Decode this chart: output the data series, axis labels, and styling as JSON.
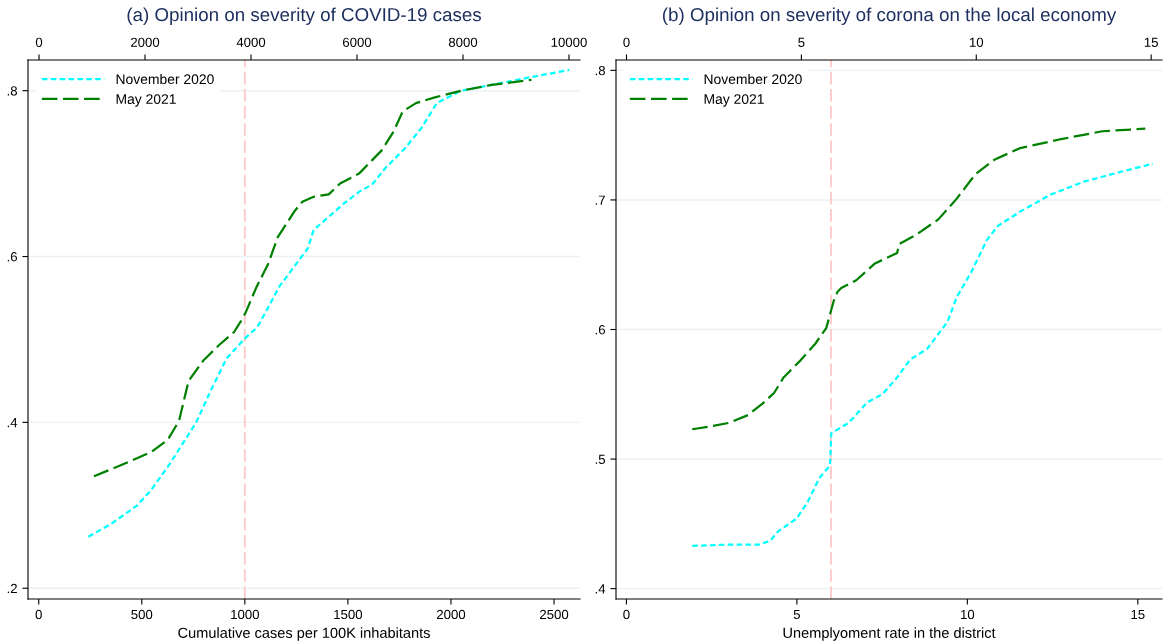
{
  "chart_data": [
    {
      "type": "line",
      "title": "(a) Opinion on severity of COVID-19 cases",
      "xlabel": "Cumulative cases per 100K inhabitants",
      "xlim": [
        -52,
        2626
      ],
      "xticks": [
        0,
        500,
        1000,
        1500,
        2000,
        2500
      ],
      "x2lim": [
        -208,
        10208
      ],
      "x2ticks": [
        0,
        2000,
        4000,
        6000,
        8000,
        10000
      ],
      "ylim": [
        0.187,
        0.837
      ],
      "yticks": [
        {
          "value": 0.2,
          "label": ".2"
        },
        {
          "value": 0.4,
          "label": ".4"
        },
        {
          "value": 0.6,
          "label": ".6"
        },
        {
          "value": 0.8,
          "label": ".8"
        }
      ],
      "grid": "y",
      "legend": "top left",
      "marker": "none",
      "ref_lines": [
        {
          "axis": "x",
          "value": 1000,
          "color": "#ffc8c8",
          "line_style": "dashed"
        }
      ],
      "series": [
        {
          "name": "November 2020",
          "color": "#00ffff",
          "line_style": "dotted",
          "x": [
            241,
            360,
            478,
            544,
            636,
            764,
            838,
            911,
            1003,
            1058,
            1077,
            1168,
            1306,
            1334,
            1389,
            1481,
            1554,
            1618,
            1683,
            1775,
            1857,
            1931,
            2050,
            2197,
            2381,
            2574
          ],
          "values": [
            0.262,
            0.279,
            0.3,
            0.318,
            0.35,
            0.4,
            0.44,
            0.477,
            0.502,
            0.514,
            0.522,
            0.564,
            0.61,
            0.632,
            0.644,
            0.664,
            0.678,
            0.687,
            0.707,
            0.73,
            0.755,
            0.785,
            0.8,
            0.807,
            0.816,
            0.825
          ]
        },
        {
          "name": "May 2021",
          "color": "#008000",
          "line_style": "dashed",
          "x": [
            268,
            415,
            544,
            626,
            681,
            727,
            800,
            874,
            948,
            981,
            1003,
            1058,
            1113,
            1159,
            1242,
            1279,
            1334,
            1407,
            1462,
            1554,
            1664,
            1720,
            1766,
            1830,
            1922,
            2050,
            2197,
            2390
          ],
          "values": [
            0.335,
            0.35,
            0.364,
            0.379,
            0.402,
            0.45,
            0.475,
            0.493,
            0.509,
            0.522,
            0.532,
            0.564,
            0.591,
            0.623,
            0.655,
            0.666,
            0.672,
            0.675,
            0.688,
            0.7,
            0.728,
            0.75,
            0.775,
            0.785,
            0.792,
            0.8,
            0.807,
            0.813
          ]
        }
      ]
    },
    {
      "type": "line",
      "title": "(b) Opinion on severity of corona on the local economy",
      "xlabel": "Unemplyoment rate in the district",
      "xlim": [
        -0.306,
        15.71
      ],
      "xticks": [
        0,
        5,
        10,
        15
      ],
      "x2lim": [
        -0.3,
        15.31
      ],
      "x2ticks": [
        0,
        5,
        10,
        15
      ],
      "ylim": [
        0.392,
        0.808
      ],
      "yticks": [
        {
          "value": 0.4,
          "label": ".4"
        },
        {
          "value": 0.5,
          "label": ".5"
        },
        {
          "value": 0.6,
          "label": ".6"
        },
        {
          "value": 0.7,
          "label": ".7"
        },
        {
          "value": 0.8,
          "label": ".8"
        }
      ],
      "grid": "y",
      "legend": "top left",
      "marker": "none",
      "ref_lines": [
        {
          "axis": "x",
          "value": 6.0,
          "color": "#ffc8c8",
          "line_style": "dashed"
        }
      ],
      "series": [
        {
          "name": "November 2020",
          "color": "#00ffff",
          "line_style": "dotted",
          "x": [
            1.93,
            3.02,
            3.89,
            4.22,
            4.44,
            4.99,
            5.32,
            5.65,
            5.97,
            6.01,
            6.52,
            7.07,
            7.51,
            7.94,
            8.33,
            8.82,
            9.42,
            9.69,
            10.13,
            10.57,
            10.9,
            11.55,
            12.43,
            13.41,
            14.4,
            15.44
          ],
          "values": [
            0.433,
            0.434,
            0.434,
            0.437,
            0.444,
            0.454,
            0.467,
            0.485,
            0.495,
            0.52,
            0.528,
            0.544,
            0.55,
            0.563,
            0.577,
            0.585,
            0.606,
            0.625,
            0.645,
            0.669,
            0.68,
            0.691,
            0.704,
            0.714,
            0.721,
            0.728
          ]
        },
        {
          "name": "May 2021",
          "color": "#008000",
          "line_style": "dashed",
          "x": [
            1.93,
            2.42,
            3.02,
            3.57,
            4.0,
            4.33,
            4.61,
            5.1,
            5.54,
            5.86,
            6.08,
            6.19,
            6.3,
            6.74,
            7.29,
            7.94,
            8.0,
            8.49,
            9.15,
            9.69,
            10.24,
            10.79,
            11.55,
            12.76,
            13.96,
            15.22
          ],
          "values": [
            0.523,
            0.525,
            0.528,
            0.534,
            0.543,
            0.551,
            0.563,
            0.576,
            0.589,
            0.601,
            0.622,
            0.629,
            0.632,
            0.638,
            0.651,
            0.659,
            0.666,
            0.673,
            0.685,
            0.701,
            0.72,
            0.731,
            0.74,
            0.747,
            0.753,
            0.755
          ]
        }
      ]
    }
  ]
}
